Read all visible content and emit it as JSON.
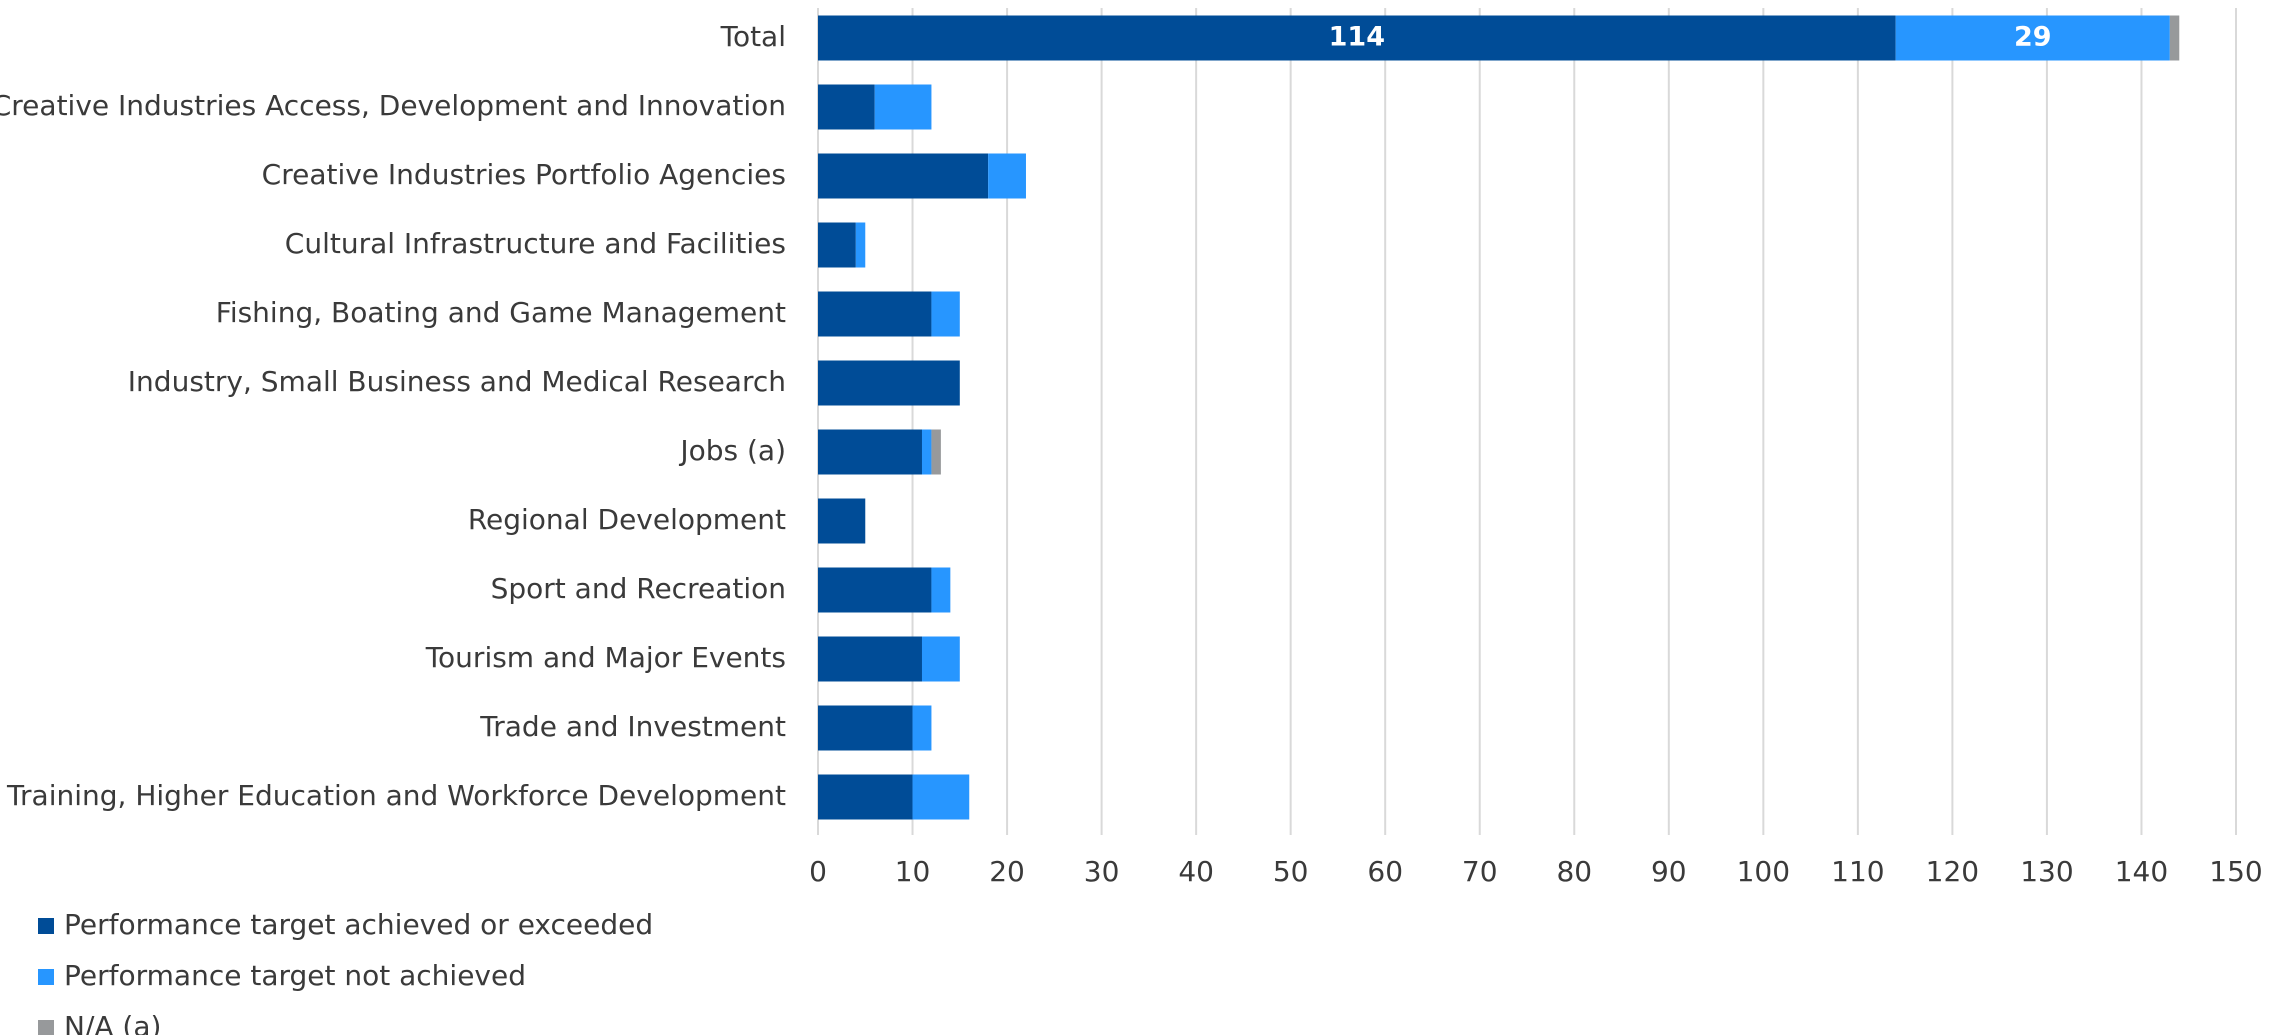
{
  "chart_data": {
    "type": "bar",
    "orientation": "horizontal",
    "stacked": true,
    "categories": [
      "Total",
      "Creative Industries Access, Development and Innovation",
      "Creative Industries Portfolio Agencies",
      "Cultural Infrastructure and Facilities",
      "Fishing, Boating and Game Management",
      "Industry, Small Business and Medical Research",
      "Jobs (a)",
      "Regional Development",
      "Sport and Recreation",
      "Tourism and Major Events",
      "Trade and Investment",
      "Training, Higher Education and Workforce Development"
    ],
    "series": [
      {
        "name": "Performance target achieved or exceeded",
        "color": "#004c97",
        "values": [
          114,
          6,
          18,
          4,
          12,
          15,
          11,
          5,
          12,
          11,
          10,
          10
        ]
      },
      {
        "name": "Performance target not achieved",
        "color": "#2796ff",
        "values": [
          29,
          6,
          4,
          1,
          3,
          0,
          1,
          0,
          2,
          4,
          2,
          6
        ]
      },
      {
        "name": "N/A (a)",
        "color": "#97999b",
        "values": [
          1,
          0,
          0,
          0,
          0,
          0,
          1,
          0,
          0,
          0,
          0,
          0
        ]
      }
    ],
    "data_labels": [
      {
        "category": "Total",
        "series": 0,
        "text": "114"
      },
      {
        "category": "Total",
        "series": 1,
        "text": "29"
      }
    ],
    "xlim": [
      0,
      150
    ],
    "xticks": [
      "0",
      "10",
      "20",
      "30",
      "40",
      "50",
      "60",
      "70",
      "80",
      "90",
      "100",
      "110",
      "120",
      "130",
      "140",
      "150"
    ],
    "grid": "vertical",
    "legend_position": "bottom-left",
    "gridline_color": "#d9d9d9"
  }
}
